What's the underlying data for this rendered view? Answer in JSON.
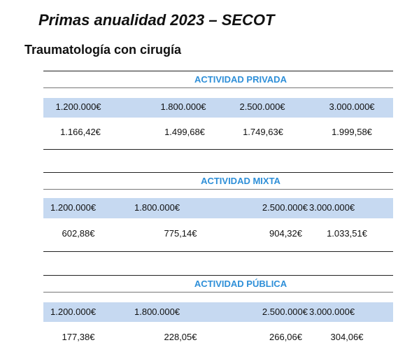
{
  "header": {
    "title": "Primas anualidad 2023 – SECOT",
    "subtitle": "Traumatología con cirugía"
  },
  "tables": [
    {
      "title": "ACTIVIDAD PRIVADA",
      "amounts": [
        "1.200.000€",
        "1.800.000€",
        "2.500.000€",
        "3.000.000€"
      ],
      "primas": [
        "1.166,42€",
        "1.499,68€",
        "1.749,63€",
        "1.999,58€"
      ]
    },
    {
      "title": "ACTIVIDAD MIXTA",
      "amounts": [
        "1.200.000€",
        "1.800.000€",
        "2.500.000€",
        "3.000.000€"
      ],
      "primas": [
        "602,88€",
        "775,14€",
        "904,32€",
        "1.033,51€"
      ]
    },
    {
      "title": "ACTIVIDAD PÚBLICA",
      "amounts": [
        "1.200.000€",
        "1.800.000€",
        "2.500.000€",
        "3.000.000€"
      ],
      "primas": [
        "177,38€",
        "228,05€",
        "266,06€",
        "304,06€"
      ]
    }
  ]
}
